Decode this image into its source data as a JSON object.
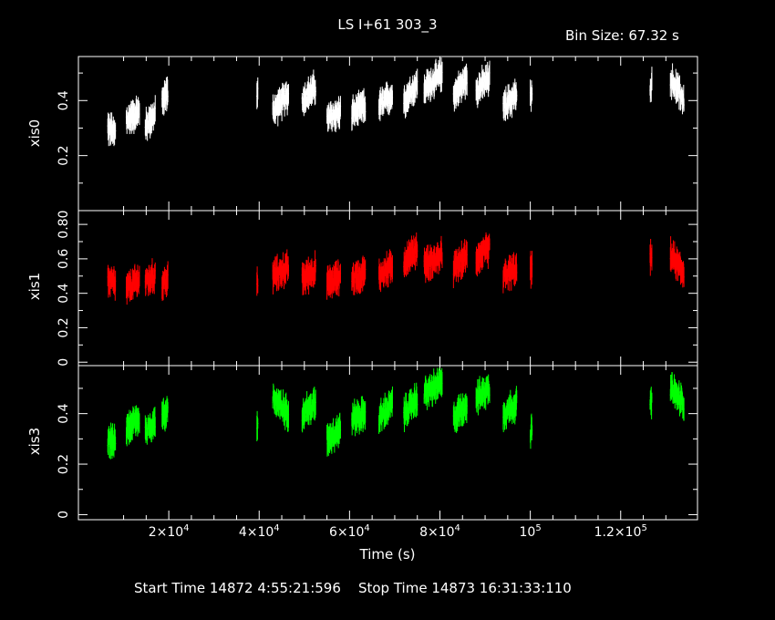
{
  "title": "LS I+61 303_3",
  "bin_size_label": "Bin Size: 67.32 s",
  "xlabel": "Time (s)",
  "start_time_label": "Start Time 14872  4:55:21:596",
  "stop_time_label": "Stop Time 14873 16:31:33:110",
  "colors": {
    "background": "#000000",
    "axes": "#ffffff",
    "xis0": "#ffffff",
    "xis1": "#ff0000",
    "xis3": "#00ff00"
  },
  "chart_data": [
    {
      "type": "scatter",
      "name": "xis0",
      "ylabel": "xis0",
      "xlim": [
        0,
        137000
      ],
      "ylim": [
        0,
        0.56
      ],
      "yticks": [
        "0.2",
        "0.4"
      ],
      "xticks": [
        "2×10^4",
        "4×10^4",
        "6×10^4",
        "8×10^4",
        "10^5",
        "1.2×10^5"
      ],
      "color": "#ffffff",
      "segments": [
        {
          "x": [
            6500,
            8200
          ],
          "y": [
            0.3,
            0.28
          ]
        },
        {
          "x": [
            10600,
            13500
          ],
          "y": [
            0.33,
            0.36
          ]
        },
        {
          "x": [
            14800,
            17000
          ],
          "y": [
            0.31,
            0.35
          ]
        },
        {
          "x": [
            18500,
            19800
          ],
          "y": [
            0.4,
            0.43
          ]
        },
        {
          "x": [
            39500,
            39700
          ],
          "y": [
            0.43,
            0.43
          ]
        },
        {
          "x": [
            43000,
            46500
          ],
          "y": [
            0.36,
            0.42
          ]
        },
        {
          "x": [
            49500,
            52500
          ],
          "y": [
            0.4,
            0.45
          ]
        },
        {
          "x": [
            55000,
            58000
          ],
          "y": [
            0.33,
            0.36
          ]
        },
        {
          "x": [
            60500,
            63500
          ],
          "y": [
            0.35,
            0.38
          ]
        },
        {
          "x": [
            66500,
            69500
          ],
          "y": [
            0.38,
            0.42
          ]
        },
        {
          "x": [
            72000,
            75000
          ],
          "y": [
            0.4,
            0.46
          ]
        },
        {
          "x": [
            76500,
            80500
          ],
          "y": [
            0.44,
            0.5
          ]
        },
        {
          "x": [
            83000,
            86000
          ],
          "y": [
            0.42,
            0.48
          ]
        },
        {
          "x": [
            88000,
            91000
          ],
          "y": [
            0.44,
            0.48
          ]
        },
        {
          "x": [
            94000,
            97000
          ],
          "y": [
            0.38,
            0.42
          ]
        },
        {
          "x": [
            100000,
            100400
          ],
          "y": [
            0.41,
            0.41
          ]
        },
        {
          "x": [
            126500,
            126900
          ],
          "y": [
            0.46,
            0.46
          ]
        },
        {
          "x": [
            131000,
            134000
          ],
          "y": [
            0.48,
            0.4
          ]
        }
      ]
    },
    {
      "type": "scatter",
      "name": "xis1",
      "ylabel": "xis1",
      "xlim": [
        0,
        137000
      ],
      "ylim": [
        -0.02,
        0.88
      ],
      "yticks": [
        "0",
        "0.2",
        "0.4",
        "0.6",
        "0.80"
      ],
      "xticks": [
        "2×10^4",
        "4×10^4",
        "6×10^4",
        "8×10^4",
        "10^5",
        "1.2×10^5"
      ],
      "color": "#ff0000",
      "segments": [
        {
          "x": [
            6500,
            8200
          ],
          "y": [
            0.48,
            0.45
          ]
        },
        {
          "x": [
            10600,
            13500
          ],
          "y": [
            0.42,
            0.48
          ]
        },
        {
          "x": [
            14800,
            17000
          ],
          "y": [
            0.47,
            0.5
          ]
        },
        {
          "x": [
            18500,
            19800
          ],
          "y": [
            0.46,
            0.48
          ]
        },
        {
          "x": [
            39500,
            39700
          ],
          "y": [
            0.46,
            0.46
          ]
        },
        {
          "x": [
            43000,
            46500
          ],
          "y": [
            0.5,
            0.55
          ]
        },
        {
          "x": [
            49500,
            52500
          ],
          "y": [
            0.48,
            0.54
          ]
        },
        {
          "x": [
            55000,
            58000
          ],
          "y": [
            0.45,
            0.5
          ]
        },
        {
          "x": [
            60500,
            63500
          ],
          "y": [
            0.48,
            0.52
          ]
        },
        {
          "x": [
            66500,
            69500
          ],
          "y": [
            0.5,
            0.56
          ]
        },
        {
          "x": [
            72000,
            75000
          ],
          "y": [
            0.58,
            0.66
          ]
        },
        {
          "x": [
            76500,
            80500
          ],
          "y": [
            0.56,
            0.62
          ]
        },
        {
          "x": [
            83000,
            86000
          ],
          "y": [
            0.54,
            0.62
          ]
        },
        {
          "x": [
            88000,
            91000
          ],
          "y": [
            0.6,
            0.66
          ]
        },
        {
          "x": [
            94000,
            97000
          ],
          "y": [
            0.5,
            0.54
          ]
        },
        {
          "x": [
            100000,
            100400
          ],
          "y": [
            0.54,
            0.54
          ]
        },
        {
          "x": [
            126500,
            126900
          ],
          "y": [
            0.6,
            0.6
          ]
        },
        {
          "x": [
            131000,
            134000
          ],
          "y": [
            0.62,
            0.52
          ]
        }
      ]
    },
    {
      "type": "scatter",
      "name": "xis3",
      "ylabel": "xis3",
      "xlim": [
        0,
        137000
      ],
      "ylim": [
        -0.02,
        0.59
      ],
      "yticks": [
        "0",
        "0.2",
        "0.4"
      ],
      "xticks": [
        "2×10^4",
        "4×10^4",
        "6×10^4",
        "8×10^4",
        "10^5",
        "1.2×10^5"
      ],
      "color": "#00ff00",
      "segments": [
        {
          "x": [
            6500,
            8200
          ],
          "y": [
            0.3,
            0.28
          ]
        },
        {
          "x": [
            10600,
            13500
          ],
          "y": [
            0.34,
            0.38
          ]
        },
        {
          "x": [
            14800,
            17000
          ],
          "y": [
            0.33,
            0.37
          ]
        },
        {
          "x": [
            18500,
            19800
          ],
          "y": [
            0.38,
            0.42
          ]
        },
        {
          "x": [
            39500,
            39700
          ],
          "y": [
            0.36,
            0.36
          ]
        },
        {
          "x": [
            43000,
            46500
          ],
          "y": [
            0.46,
            0.4
          ]
        },
        {
          "x": [
            49500,
            52500
          ],
          "y": [
            0.4,
            0.44
          ]
        },
        {
          "x": [
            55000,
            58000
          ],
          "y": [
            0.3,
            0.34
          ]
        },
        {
          "x": [
            60500,
            63500
          ],
          "y": [
            0.38,
            0.4
          ]
        },
        {
          "x": [
            66500,
            69500
          ],
          "y": [
            0.38,
            0.44
          ]
        },
        {
          "x": [
            72000,
            75000
          ],
          "y": [
            0.4,
            0.46
          ]
        },
        {
          "x": [
            76500,
            80500
          ],
          "y": [
            0.48,
            0.52
          ]
        },
        {
          "x": [
            83000,
            86000
          ],
          "y": [
            0.38,
            0.44
          ]
        },
        {
          "x": [
            88000,
            91000
          ],
          "y": [
            0.46,
            0.5
          ]
        },
        {
          "x": [
            94000,
            97000
          ],
          "y": [
            0.4,
            0.44
          ]
        },
        {
          "x": [
            100000,
            100400
          ],
          "y": [
            0.3,
            0.36
          ]
        },
        {
          "x": [
            126500,
            126900
          ],
          "y": [
            0.44,
            0.44
          ]
        },
        {
          "x": [
            131000,
            134000
          ],
          "y": [
            0.5,
            0.44
          ]
        }
      ]
    }
  ]
}
